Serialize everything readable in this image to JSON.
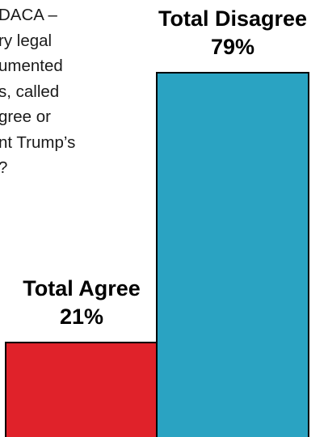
{
  "question_lines": [
    "DACA –",
    "ry legal",
    "umented",
    "s, called",
    "gree or",
    "nt Trump’s",
    "?"
  ],
  "chart_data": {
    "type": "bar",
    "categories": [
      "Total Agree",
      "Total Disagree"
    ],
    "values": [
      21,
      79
    ],
    "value_labels": [
      "21%",
      "79%"
    ],
    "colors": [
      "#e0222a",
      "#2aa3c2"
    ],
    "ylim": [
      0,
      79
    ],
    "grid": false,
    "legend": "none"
  }
}
